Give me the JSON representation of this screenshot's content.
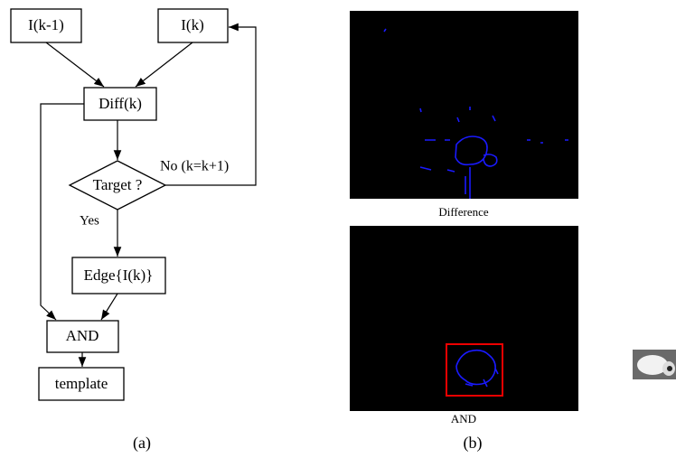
{
  "nodes": [
    {
      "label": "I(k-1)"
    },
    {
      "label": "I(k)"
    },
    {
      "label": "Diff(k)"
    },
    {
      "label": "Target ?"
    },
    {
      "label": "Edge{I(k)}"
    },
    {
      "label": "AND"
    },
    {
      "label": "template"
    }
  ],
  "edges": [
    {
      "label": "No (k=k+1)"
    },
    {
      "label": "Yes"
    }
  ],
  "images": [
    {
      "label": "Difference"
    },
    {
      "label": "AND"
    }
  ],
  "captions": [
    "(a)",
    "(b)"
  ]
}
